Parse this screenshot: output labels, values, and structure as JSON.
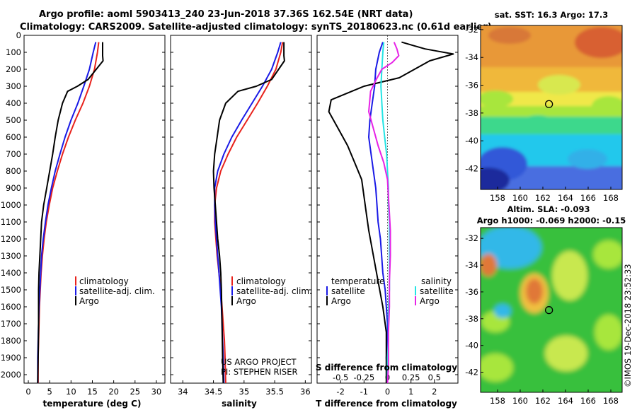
{
  "header": {
    "line1": "Argo profile: aoml 5903413_240 23-Jun-2018 37.36S 162.54E (NRT data)",
    "line2": "Climatology: CARS2009. Satellite-adjusted climatology: synTS_20180623.nc (0.61d earlier)"
  },
  "credit": [
    "US ARGO PROJECT",
    "PI: STEPHEN RISER"
  ],
  "imos_stamp": "©IMOS 19-Dec-2018 23:52:33",
  "colors": {
    "climatology": "#e8221c",
    "satellite": "#1a1ae6",
    "argo": "#000000",
    "sal_sat": "#22e4e4",
    "sal_argo": "#e622e6"
  },
  "pressure_ticks": [
    "0",
    "100",
    "200",
    "300",
    "400",
    "500",
    "600",
    "700",
    "800",
    "900",
    "1000",
    "1100",
    "1200",
    "1300",
    "1400",
    "1500",
    "1600",
    "1700",
    "1800",
    "1900",
    "2000"
  ],
  "chart_data": [
    {
      "type": "line",
      "xlabel": "temperature (deg C)",
      "xlim": [
        -1,
        32
      ],
      "ylim": [
        2050,
        0
      ],
      "x_ticks": [
        "0",
        "5",
        "10",
        "15",
        "20",
        "25",
        "30"
      ],
      "legend": [
        "climatology",
        "satellite-adj. clim.",
        "Argo"
      ],
      "series": [
        {
          "name": "climatology",
          "color": "#e8221c",
          "x": [
            16.5,
            16.2,
            15.5,
            14.3,
            12.8,
            11.0,
            9.4,
            8.0,
            6.8,
            5.7,
            4.9,
            4.2,
            3.7,
            3.3,
            3.0,
            2.8,
            2.6,
            2.5,
            2.4,
            2.3,
            2.3
          ],
          "y": [
            40,
            100,
            200,
            300,
            400,
            500,
            600,
            700,
            800,
            900,
            1000,
            1100,
            1200,
            1300,
            1400,
            1500,
            1600,
            1700,
            1800,
            1900,
            2050
          ]
        },
        {
          "name": "satellite-adj. clim.",
          "color": "#1a1ae6",
          "x": [
            15.8,
            15.2,
            14.3,
            13.0,
            11.6,
            10.0,
            8.6,
            7.4,
            6.3,
            5.4,
            4.6,
            4.0,
            3.5,
            3.1,
            2.9,
            2.7,
            2.5,
            2.4,
            2.3,
            2.2,
            2.2
          ],
          "y": [
            40,
            100,
            200,
            300,
            400,
            500,
            600,
            700,
            800,
            900,
            1000,
            1100,
            1200,
            1300,
            1400,
            1500,
            1600,
            1700,
            1800,
            1900,
            2050
          ]
        },
        {
          "name": "Argo",
          "color": "#000000",
          "x": [
            17.4,
            17.4,
            17.4,
            17.5,
            14.0,
            11.5,
            9.2,
            8.0,
            7.0,
            6.3,
            5.7,
            5.0,
            4.3,
            3.6,
            3.1,
            2.9,
            2.7,
            2.5,
            2.4,
            2.4,
            2.3,
            2.2
          ],
          "y": [
            40,
            80,
            120,
            150,
            260,
            300,
            330,
            400,
            500,
            600,
            700,
            800,
            900,
            1000,
            1100,
            1200,
            1300,
            1400,
            1500,
            1700,
            1900,
            2050
          ]
        }
      ]
    },
    {
      "type": "line",
      "xlabel": "salinity",
      "xlim": [
        33.8,
        36.1
      ],
      "ylim": [
        2050,
        0
      ],
      "x_ticks": [
        "34",
        "34.5",
        "35",
        "35.5",
        "36"
      ],
      "legend": [
        "climatology",
        "satellite-adj. clim.",
        "Argo"
      ],
      "series": [
        {
          "name": "climatology",
          "color": "#e8221c",
          "x": [
            35.63,
            35.6,
            35.52,
            35.38,
            35.22,
            35.05,
            34.88,
            34.74,
            34.62,
            34.55,
            34.52,
            34.52,
            34.54,
            34.56,
            34.59,
            34.62,
            34.64,
            34.66,
            34.68,
            34.69,
            34.7
          ],
          "y": [
            40,
            100,
            200,
            300,
            400,
            500,
            600,
            700,
            800,
            900,
            1000,
            1100,
            1200,
            1300,
            1400,
            1500,
            1600,
            1700,
            1800,
            1900,
            2050
          ]
        },
        {
          "name": "satellite-adj. clim.",
          "color": "#1a1ae6",
          "x": [
            35.6,
            35.55,
            35.45,
            35.3,
            35.13,
            34.96,
            34.8,
            34.67,
            34.57,
            34.52,
            34.52,
            34.53,
            34.55,
            34.57,
            34.59,
            34.61,
            34.63,
            34.64,
            34.65,
            34.66,
            34.67
          ],
          "y": [
            40,
            100,
            200,
            300,
            400,
            500,
            600,
            700,
            800,
            900,
            1000,
            1100,
            1200,
            1300,
            1400,
            1500,
            1600,
            1700,
            1800,
            1900,
            2050
          ]
        },
        {
          "name": "Argo",
          "color": "#000000",
          "x": [
            35.65,
            35.65,
            35.65,
            35.66,
            35.45,
            35.2,
            34.9,
            34.7,
            34.6,
            34.56,
            34.52,
            34.5,
            34.51,
            34.53,
            34.55,
            34.57,
            34.6,
            34.62,
            34.63,
            34.64,
            34.65,
            34.66
          ],
          "y": [
            40,
            80,
            120,
            150,
            260,
            300,
            330,
            400,
            500,
            600,
            700,
            800,
            900,
            1000,
            1100,
            1200,
            1300,
            1400,
            1500,
            1700,
            1900,
            2050
          ]
        }
      ]
    },
    {
      "type": "line",
      "xlabel": "T difference from climatology",
      "xlabel_top": "S difference from climatology",
      "xlim": [
        -3.0,
        3.0
      ],
      "ylim": [
        2050,
        0
      ],
      "x_ticks": [
        "-2",
        "-1",
        "0",
        "1",
        "2"
      ],
      "x_ticks_top": [
        "-0.5",
        "-0.25",
        "0",
        "0.25",
        "0.5"
      ],
      "legend_left_title": "temperature",
      "legend_right_title": "salinity",
      "legend_left": [
        "satellite",
        "Argo"
      ],
      "legend_right": [
        "satellite",
        "Argo"
      ],
      "series": [
        {
          "name": "temperature satellite",
          "color": "#1a1ae6",
          "x": [
            -0.2,
            -0.35,
            -0.5,
            -0.55,
            -0.65,
            -0.75,
            -0.8,
            -0.7,
            -0.6,
            -0.5,
            -0.45,
            -0.4,
            -0.3,
            -0.25,
            -0.2,
            -0.1,
            -0.05,
            0.0,
            0.0,
            -0.05,
            0.0
          ],
          "y": [
            40,
            100,
            200,
            300,
            400,
            500,
            600,
            700,
            800,
            900,
            1000,
            1100,
            1200,
            1300,
            1400,
            1500,
            1600,
            1700,
            1800,
            1900,
            2050
          ]
        },
        {
          "name": "temperature Argo",
          "color": "#000000",
          "x": [
            0.6,
            1.1,
            1.6,
            2.2,
            2.8,
            1.8,
            0.5,
            -1.0,
            -2.4,
            -2.5,
            -2.1,
            -1.7,
            -1.4,
            -1.1,
            -1.0,
            -0.9,
            -0.8,
            -0.6,
            -0.4,
            -0.2,
            -0.05,
            -0.05,
            -0.05
          ],
          "y": [
            40,
            60,
            80,
            95,
            110,
            150,
            250,
            300,
            380,
            450,
            550,
            650,
            750,
            850,
            950,
            1050,
            1150,
            1300,
            1450,
            1600,
            1750,
            1900,
            2050
          ]
        },
        {
          "name": "salinity satellite",
          "color": "#22e4e4",
          "x": [
            -0.04,
            -0.05,
            -0.06,
            -0.07,
            -0.06,
            -0.05,
            -0.03,
            -0.01,
            0.0,
            0.01,
            0.01,
            0.02,
            0.02,
            0.02,
            0.02,
            0.02,
            0.01,
            0.01,
            0.01,
            0.0,
            0.0
          ],
          "y": [
            40,
            100,
            200,
            300,
            400,
            500,
            600,
            700,
            800,
            900,
            1000,
            1100,
            1200,
            1300,
            1400,
            1500,
            1600,
            1700,
            1800,
            1900,
            2050
          ]
        },
        {
          "name": "salinity Argo",
          "color": "#e622e6",
          "x": [
            0.07,
            0.1,
            0.12,
            0.05,
            -0.06,
            -0.12,
            -0.18,
            -0.2,
            -0.15,
            -0.1,
            -0.04,
            0.0,
            0.01,
            0.02,
            0.03,
            0.03,
            0.02,
            0.02,
            0.01,
            0.01,
            0.01,
            0.0
          ],
          "y": [
            40,
            80,
            120,
            160,
            200,
            260,
            330,
            450,
            550,
            650,
            750,
            850,
            950,
            1050,
            1150,
            1300,
            1450,
            1600,
            1750,
            1850,
            1950,
            2050
          ]
        }
      ]
    },
    {
      "type": "heatmap",
      "title": "sat. SST: 16.3 Argo: 17.3",
      "xlim": [
        156.5,
        169.0
      ],
      "ylim": [
        -43.5,
        -31.7
      ],
      "x_ticks": [
        "158",
        "160",
        "162",
        "164",
        "166",
        "168"
      ],
      "y_ticks": [
        "-32",
        "-34",
        "-36",
        "-38",
        "-40",
        "-42"
      ],
      "marker": {
        "lon": 162.54,
        "lat": -37.36
      }
    },
    {
      "type": "heatmap",
      "title_line1": "Altim. SLA: -0.093",
      "title_line2": "Argo h1000: -0.069 h2000: -0.15",
      "xlim": [
        156.5,
        169.0
      ],
      "ylim": [
        -43.5,
        -31.2
      ],
      "x_ticks": [
        "158",
        "160",
        "162",
        "164",
        "166",
        "168"
      ],
      "y_ticks": [
        "-32",
        "-34",
        "-36",
        "-38",
        "-40",
        "-42"
      ],
      "marker": {
        "lon": 162.54,
        "lat": -37.36
      }
    }
  ]
}
